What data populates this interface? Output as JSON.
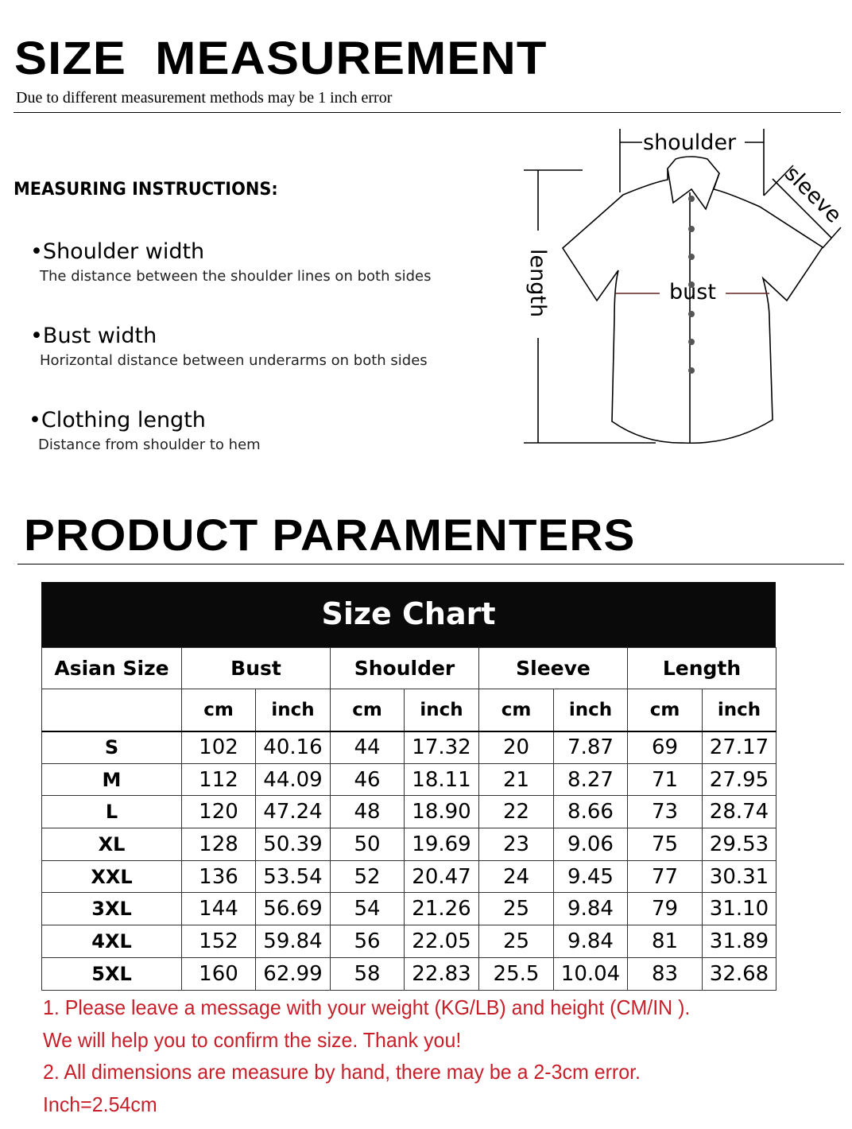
{
  "section1": {
    "title": "SIZE  MEASUREMENT",
    "subtitle": "Due to different measurement methods may be 1 inch error",
    "instructions_heading": "MEASURING INSTRUCTIONS:",
    "items": [
      {
        "title": "•Shoulder width",
        "desc": "The distance between the shoulder lines on both sides"
      },
      {
        "title": "•Bust width",
        "desc": "Horizontal distance between underarms on both sides"
      },
      {
        "title": "•Clothing length",
        "desc": "Distance from shoulder to hem"
      }
    ]
  },
  "diagram": {
    "shoulder": "shoulder",
    "sleeve": "sleeve",
    "bust": "bust",
    "length": "length"
  },
  "section2": {
    "title": "PRODUCT PARAMENTERS"
  },
  "size_chart": {
    "title": "Size Chart",
    "headers": [
      "Asian Size",
      "Bust",
      "Shoulder",
      "Sleeve",
      "Length"
    ],
    "units": [
      "cm",
      "inch",
      "cm",
      "inch",
      "cm",
      "inch",
      "cm",
      "inch"
    ],
    "rows": [
      [
        "S",
        "102",
        "40.16",
        "44",
        "17.32",
        "20",
        "7.87",
        "69",
        "27.17"
      ],
      [
        "M",
        "112",
        "44.09",
        "46",
        "18.11",
        "21",
        "8.27",
        "71",
        "27.95"
      ],
      [
        "L",
        "120",
        "47.24",
        "48",
        "18.90",
        "22",
        "8.66",
        "73",
        "28.74"
      ],
      [
        "XL",
        "128",
        "50.39",
        "50",
        "19.69",
        "23",
        "9.06",
        "75",
        "29.53"
      ],
      [
        "XXL",
        "136",
        "53.54",
        "52",
        "20.47",
        "24",
        "9.45",
        "77",
        "30.31"
      ],
      [
        "3XL",
        "144",
        "56.69",
        "54",
        "21.26",
        "25",
        "9.84",
        "79",
        "31.10"
      ],
      [
        "4XL",
        "152",
        "59.84",
        "56",
        "22.05",
        "25",
        "9.84",
        "81",
        "31.89"
      ],
      [
        "5XL",
        "160",
        "62.99",
        "58",
        "22.83",
        "25.5",
        "10.04",
        "83",
        "32.68"
      ]
    ]
  },
  "notes": [
    "1. Please leave a message with your weight (KG/LB) and height (CM/IN ).",
    "We will help you to confirm the size. Thank you!",
    "2. All dimensions are measure by hand, there may be a 2-3cm error.",
    "Inch=2.54cm"
  ],
  "colors": {
    "note_text": "#c8202a",
    "chart_header_bg": "#0a0a0a"
  }
}
